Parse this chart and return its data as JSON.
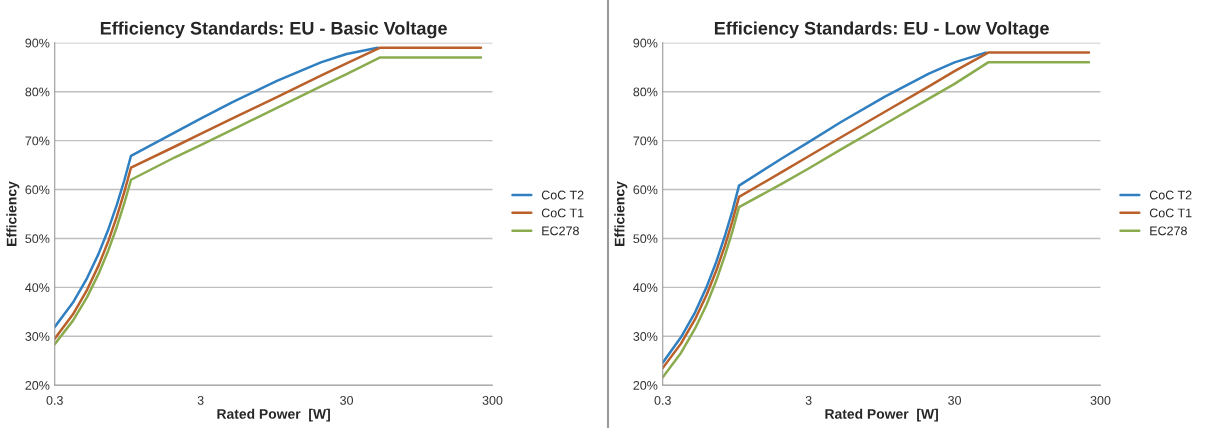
{
  "chart_data": [
    {
      "type": "line",
      "title": "Efficiency Standards: EU - Basic Voltage",
      "xlabel": "Rated Power  [W]",
      "ylabel": "Efficiency",
      "log": "x",
      "xlim": [
        0.3,
        300
      ],
      "xticks": [
        0.3,
        3,
        30,
        300
      ],
      "ylim": [
        20,
        90
      ],
      "yticks": [
        {
          "value": 20,
          "label": "20%"
        },
        {
          "value": 30,
          "label": "30%"
        },
        {
          "value": 40,
          "label": "40%"
        },
        {
          "value": 50,
          "label": "50%"
        },
        {
          "value": 60,
          "label": "60%"
        },
        {
          "value": 70,
          "label": "70%"
        },
        {
          "value": 80,
          "label": "80%"
        },
        {
          "value": 90,
          "label": "90%"
        }
      ],
      "grid": "y",
      "legend": "right",
      "marker": "none",
      "line_style": "solid",
      "series": [
        {
          "name": "CoC T2",
          "color": "#2f7fc1",
          "x": [
            0.3,
            0.4,
            0.5,
            0.6,
            0.7,
            0.8,
            0.9,
            1,
            2,
            3,
            5,
            10,
            20,
            30,
            49
          ],
          "values": [
            31.9,
            36.9,
            41.9,
            46.9,
            51.9,
            56.9,
            61.9,
            66.9,
            71.7,
            74.5,
            77.9,
            82.2,
            86.0,
            87.7,
            89
          ]
        },
        {
          "name": "CoC T1",
          "color": "#b9602b",
          "x": [
            0.3,
            0.4,
            0.5,
            0.6,
            0.7,
            0.8,
            0.9,
            1,
            2,
            3,
            5,
            10,
            20,
            30,
            51,
            250
          ],
          "values": [
            29.5,
            34.5,
            39.5,
            44.5,
            49.5,
            54.5,
            59.5,
            64.5,
            68.8,
            71.4,
            74.6,
            78.9,
            83.3,
            85.8,
            89,
            89
          ]
        },
        {
          "name": "EC278",
          "color": "#8aac4e",
          "x": [
            0.3,
            0.4,
            0.5,
            0.6,
            0.7,
            0.8,
            0.9,
            1,
            2,
            3,
            5,
            10,
            20,
            30,
            51,
            250
          ],
          "values": [
            28.4,
            33.2,
            38.0,
            42.8,
            47.6,
            52.4,
            57.2,
            62.0,
            66.6,
            69.1,
            72.3,
            76.7,
            81.1,
            83.6,
            87,
            87
          ]
        }
      ]
    },
    {
      "type": "line",
      "title": "Efficiency Standards: EU - Low Voltage",
      "xlabel": "Rated Power  [W]",
      "ylabel": "Efficiency",
      "log": "x",
      "xlim": [
        0.3,
        300
      ],
      "xticks": [
        0.3,
        3,
        30,
        300
      ],
      "ylim": [
        20,
        90
      ],
      "yticks": [
        {
          "value": 20,
          "label": "20%"
        },
        {
          "value": 30,
          "label": "30%"
        },
        {
          "value": 40,
          "label": "40%"
        },
        {
          "value": 50,
          "label": "50%"
        },
        {
          "value": 60,
          "label": "60%"
        },
        {
          "value": 70,
          "label": "70%"
        },
        {
          "value": 80,
          "label": "80%"
        },
        {
          "value": 90,
          "label": "90%"
        }
      ],
      "grid": "y",
      "legend": "right",
      "marker": "none",
      "line_style": "solid",
      "series": [
        {
          "name": "CoC T2",
          "color": "#2f7fc1",
          "x": [
            0.3,
            0.4,
            0.5,
            0.6,
            0.7,
            0.8,
            0.9,
            1,
            2,
            3,
            5,
            10,
            20,
            30,
            49
          ],
          "values": [
            24.6,
            29.8,
            34.9,
            40.1,
            45.3,
            50.5,
            55.6,
            60.8,
            66.5,
            69.7,
            73.8,
            79.0,
            83.7,
            86.0,
            88
          ]
        },
        {
          "name": "CoC T1",
          "color": "#b9602b",
          "x": [
            0.3,
            0.4,
            0.5,
            0.6,
            0.7,
            0.8,
            0.9,
            1,
            2,
            3,
            5,
            10,
            20,
            30,
            51,
            250
          ],
          "values": [
            23.5,
            28.5,
            33.5,
            38.5,
            43.5,
            48.5,
            53.5,
            58.5,
            63.7,
            66.8,
            70.7,
            75.9,
            81.1,
            84.2,
            88,
            88
          ]
        },
        {
          "name": "EC278",
          "color": "#8aac4e",
          "x": [
            0.3,
            0.4,
            0.5,
            0.6,
            0.7,
            0.8,
            0.9,
            1,
            2,
            3,
            5,
            10,
            20,
            30,
            51,
            250
          ],
          "values": [
            21.6,
            26.6,
            31.6,
            36.5,
            41.5,
            46.5,
            51.4,
            56.4,
            61.3,
            64.3,
            68.2,
            73.4,
            78.6,
            81.6,
            86,
            86
          ]
        }
      ]
    }
  ]
}
